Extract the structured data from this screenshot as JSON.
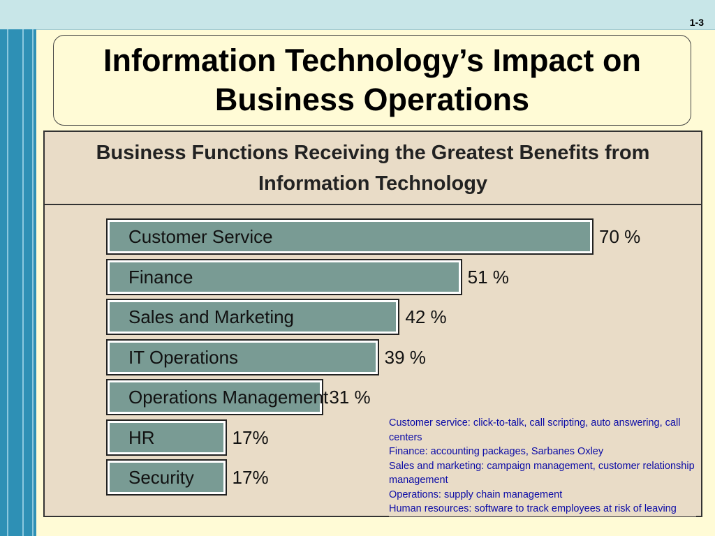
{
  "slide_number": "1-3",
  "title": "Information Technology’s Impact on Business Operations",
  "figure_title": "Business Functions Receiving the Greatest Benefits from Information Technology",
  "chart_data": {
    "type": "bar",
    "title": "Business Functions Receiving the Greatest Benefits from Information Technology",
    "categories": [
      "Customer Service",
      "Finance",
      "Sales and Marketing",
      "IT Operations",
      "Operations Management",
      "HR",
      "Security"
    ],
    "values": [
      70,
      51,
      42,
      39,
      31,
      17,
      17
    ],
    "value_labels": [
      "70 %",
      "51 %",
      "42 %",
      "39 %",
      "31 %",
      "17%",
      "17%"
    ],
    "orientation": "horizontal",
    "unit": "%",
    "colors": {
      "bar": "#799b94",
      "background": "#e9dcc7"
    }
  },
  "notes": [
    "Customer service: click-to-talk, call scripting, auto answering, call centers",
    "Finance: accounting packages, Sarbanes Oxley",
    "Sales and marketing: campaign management, customer relationship management",
    "Operations: supply chain management",
    "Human resources: software to track employees at risk of leaving"
  ],
  "colors": {
    "slide_background": "#fffbd6",
    "top_band": "#c8e6e8",
    "left_band": "#2e90b5",
    "note_text": "#0b0ba6"
  }
}
